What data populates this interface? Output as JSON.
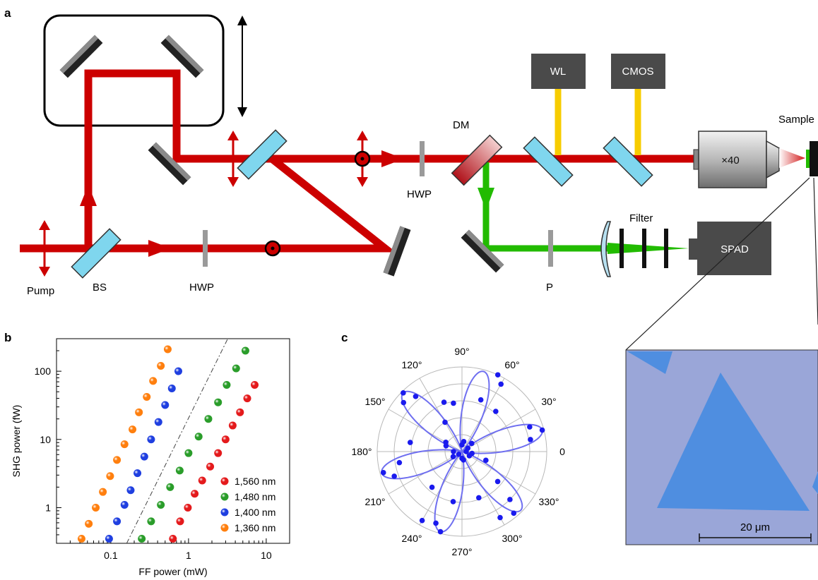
{
  "figure": {
    "panel_labels": {
      "a": "a",
      "b": "b",
      "c": "c"
    }
  },
  "setup": {
    "labels": {
      "pump": "Pump",
      "bs": "BS",
      "hwp_lower": "HWP",
      "hwp_upper": "HWP",
      "dm": "DM",
      "wl": "WL",
      "cmos": "CMOS",
      "sample": "Sample",
      "objective": "×40",
      "filter": "Filter",
      "spad": "SPAD",
      "polarizer": "P"
    },
    "micrograph": {
      "scale_bar": "20 μm",
      "colors": {
        "background": "#9aa6d8",
        "flake": "#4f8ee0"
      }
    },
    "colors": {
      "fundamental_beam": "#cc0000",
      "shg_beam": "#22bb00",
      "imaging_beam": "#f7cc00",
      "beamsplitter": "#7fd6ee",
      "mirror": "#222222",
      "box": "#4a4a4a"
    }
  },
  "chart_data": [
    {
      "panel": "b",
      "type": "scatter",
      "xscale": "log",
      "yscale": "log",
      "xlabel": "FF power (mW)",
      "ylabel": "SHG power (fW)",
      "xlim": [
        0.02,
        20
      ],
      "ylim": [
        0.3,
        300
      ],
      "x_ticks": [
        {
          "v": 0.1,
          "label": "0.1"
        },
        {
          "v": 1,
          "label": "1"
        },
        {
          "v": 10,
          "label": "10"
        }
      ],
      "y_ticks": [
        {
          "v": 1,
          "label": "1"
        },
        {
          "v": 10,
          "label": "10"
        },
        {
          "v": 100,
          "label": "100"
        }
      ],
      "legend": "bottom-right",
      "series": [
        {
          "name": "1,560 nm",
          "color": "#e41a1c",
          "x": [
            0.63,
            0.78,
            0.98,
            1.2,
            1.5,
            1.9,
            2.4,
            3.0,
            3.7,
            4.6,
            5.7,
            7.1
          ],
          "y": [
            0.35,
            0.63,
            1.0,
            1.6,
            2.5,
            4.0,
            6.3,
            10,
            16,
            25,
            40,
            63
          ]
        },
        {
          "name": "1,480 nm",
          "color": "#2a9d2a",
          "x": [
            0.25,
            0.33,
            0.44,
            0.58,
            0.77,
            1.0,
            1.35,
            1.8,
            2.4,
            3.1,
            4.1,
            5.4
          ],
          "y": [
            0.35,
            0.63,
            1.1,
            2.0,
            3.5,
            6.3,
            11,
            20,
            35,
            63,
            110,
            200
          ]
        },
        {
          "name": "1,400 nm",
          "color": "#1f3fe0",
          "x": [
            0.095,
            0.12,
            0.15,
            0.18,
            0.22,
            0.27,
            0.33,
            0.41,
            0.5,
            0.61,
            0.74
          ],
          "y": [
            0.35,
            0.63,
            1.1,
            1.8,
            3.2,
            5.6,
            10,
            18,
            32,
            56,
            100
          ]
        },
        {
          "name": "1,360 nm",
          "color": "#ff7f0e",
          "x": [
            0.042,
            0.052,
            0.064,
            0.079,
            0.098,
            0.12,
            0.15,
            0.19,
            0.23,
            0.29,
            0.35,
            0.44,
            0.54
          ],
          "y": [
            0.35,
            0.58,
            1.0,
            1.7,
            2.9,
            5.0,
            8.5,
            14,
            25,
            42,
            72,
            120,
            210
          ]
        }
      ],
      "reference_line": {
        "style": "dash-dot",
        "points": [
          [
            0.16,
            0.3
          ],
          [
            3.2,
            300
          ]
        ]
      }
    },
    {
      "panel": "c",
      "type": "polar-scatter",
      "angle_labels": [
        {
          "deg": 0,
          "label": "0"
        },
        {
          "deg": 30,
          "label": "30°"
        },
        {
          "deg": 60,
          "label": "60°"
        },
        {
          "deg": 90,
          "label": "90°"
        },
        {
          "deg": 120,
          "label": "120°"
        },
        {
          "deg": 150,
          "label": "150°"
        },
        {
          "deg": 180,
          "label": "180°"
        },
        {
          "deg": 210,
          "label": "210°"
        },
        {
          "deg": 240,
          "label": "240°"
        },
        {
          "deg": 270,
          "label": "270°"
        },
        {
          "deg": 300,
          "label": "300°"
        },
        {
          "deg": 330,
          "label": "330°"
        }
      ],
      "rlim": [
        0,
        1
      ],
      "fit": {
        "form": "cos^2(3θ)",
        "petal_angles_deg": [
          15,
          75,
          135,
          195,
          255,
          315
        ],
        "color": "#6f6ff0"
      },
      "points": {
        "color": "#1a1aee",
        "theta_deg": [
          0,
          10,
          15,
          20,
          30,
          40,
          50,
          60,
          65,
          70,
          80,
          90,
          100,
          110,
          120,
          130,
          135,
          140,
          150,
          160,
          170,
          180,
          190,
          195,
          200,
          210,
          220,
          230,
          240,
          250,
          255,
          260,
          270,
          280,
          290,
          300,
          310,
          315,
          320,
          330,
          340,
          350
        ],
        "r": [
          0.05,
          0.82,
          0.98,
          0.85,
          0.08,
          0.15,
          0.62,
          0.92,
          1.0,
          0.65,
          0.12,
          0.08,
          0.58,
          0.62,
          0.4,
          0.85,
          0.98,
          0.9,
          0.22,
          0.2,
          0.62,
          0.1,
          0.75,
          0.96,
          0.85,
          0.12,
          0.05,
          0.55,
          0.94,
          0.9,
          0.98,
          0.6,
          0.08,
          0.1,
          0.58,
          0.9,
          0.95,
          0.8,
          0.55,
          0.1,
          0.3,
          0.12
        ]
      }
    }
  ]
}
